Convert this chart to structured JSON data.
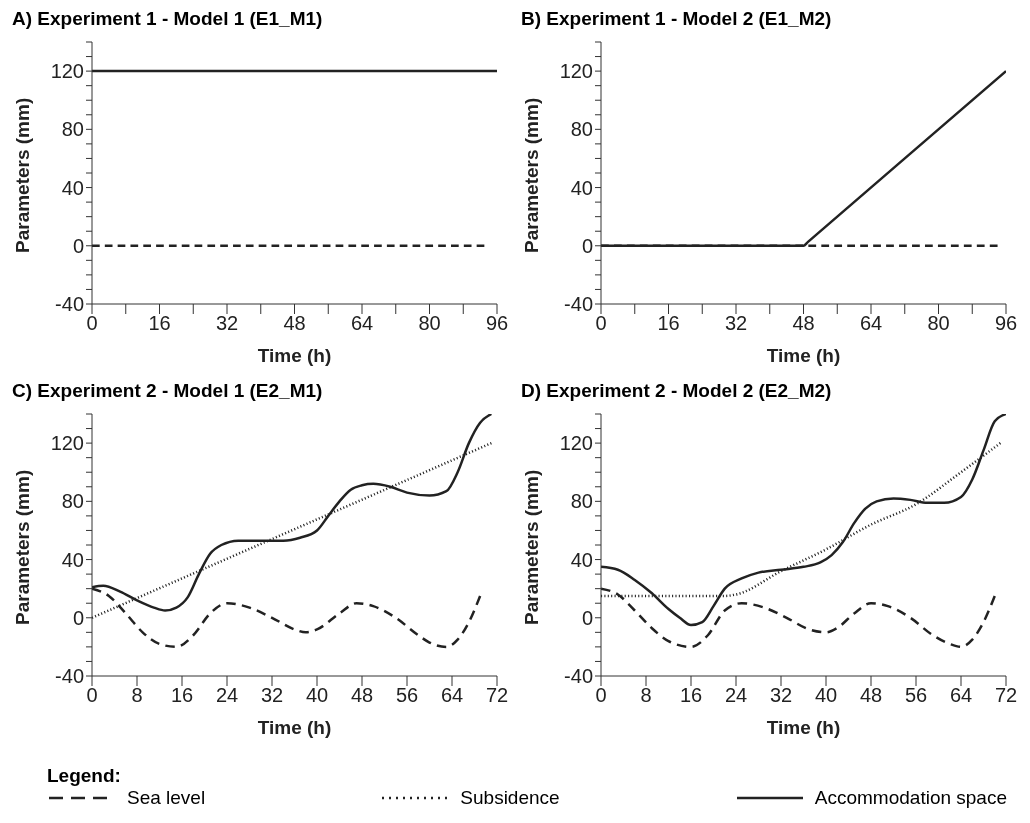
{
  "chart_data": [
    {
      "type": "line",
      "title": "A) Experiment 1 - Model 1 (E1_M1)",
      "xlabel": "Time (h)",
      "ylabel": "Parameters (mm)",
      "xlim": [
        0,
        96
      ],
      "ylim": [
        -40,
        140
      ],
      "xticks": [
        0,
        {
          "value": 8,
          "label": null
        },
        16,
        {
          "value": 24,
          "label": null
        },
        32,
        {
          "value": 40,
          "label": null
        },
        48,
        {
          "value": 56,
          "label": null
        },
        64,
        {
          "value": 72,
          "label": null
        },
        80,
        {
          "value": 88,
          "label": null
        },
        96
      ],
      "yticks": [
        -40,
        {
          "value": -30,
          "label": null
        },
        {
          "value": -20,
          "label": null
        },
        {
          "value": -10,
          "label": null
        },
        0,
        {
          "value": 10,
          "label": null
        },
        {
          "value": 20,
          "label": null
        },
        {
          "value": 30,
          "label": null
        },
        40,
        {
          "value": 50,
          "label": null
        },
        {
          "value": 60,
          "label": null
        },
        {
          "value": 70,
          "label": null
        },
        80,
        {
          "value": 90,
          "label": null
        },
        {
          "value": 100,
          "label": null
        },
        {
          "value": 110,
          "label": null
        },
        120,
        {
          "value": 130,
          "label": null
        },
        {
          "value": 140,
          "label": null
        }
      ],
      "grid": false,
      "legend": false,
      "marker": "none",
      "series": [
        {
          "color": "#222222",
          "line_style": "dashed",
          "x": [
            0,
            93
          ],
          "values": [
            0,
            0
          ]
        },
        {
          "color": "#222222",
          "line_style": "solid",
          "x": [
            0,
            96
          ],
          "values": [
            120,
            120
          ]
        }
      ]
    },
    {
      "type": "line",
      "title": "B) Experiment 1 - Model 2 (E1_M2)",
      "xlabel": "Time (h)",
      "ylabel": "Parameters (mm)",
      "xlim": [
        0,
        96
      ],
      "ylim": [
        -40,
        140
      ],
      "xticks": [
        0,
        {
          "value": 8,
          "label": null
        },
        16,
        {
          "value": 24,
          "label": null
        },
        32,
        {
          "value": 40,
          "label": null
        },
        48,
        {
          "value": 56,
          "label": null
        },
        64,
        {
          "value": 72,
          "label": null
        },
        80,
        {
          "value": 88,
          "label": null
        },
        96
      ],
      "yticks": [
        -40,
        {
          "value": -30,
          "label": null
        },
        {
          "value": -20,
          "label": null
        },
        {
          "value": -10,
          "label": null
        },
        0,
        {
          "value": 10,
          "label": null
        },
        {
          "value": 20,
          "label": null
        },
        {
          "value": 30,
          "label": null
        },
        40,
        {
          "value": 50,
          "label": null
        },
        {
          "value": 60,
          "label": null
        },
        {
          "value": 70,
          "label": null
        },
        80,
        {
          "value": 90,
          "label": null
        },
        {
          "value": 100,
          "label": null
        },
        {
          "value": 110,
          "label": null
        },
        120,
        {
          "value": 130,
          "label": null
        },
        {
          "value": 140,
          "label": null
        }
      ],
      "grid": false,
      "legend": false,
      "marker": "none",
      "series": [
        {
          "color": "#222222",
          "line_style": "dashed",
          "x": [
            0,
            94
          ],
          "values": [
            0,
            0
          ]
        },
        {
          "color": "#222222",
          "line_style": "solid",
          "x": [
            0,
            48,
            49,
            96
          ],
          "values": [
            0,
            0,
            2.5,
            120
          ]
        }
      ]
    },
    {
      "type": "line",
      "title": "C) Experiment 2 - Model 1 (E2_M1)",
      "xlabel": "Time (h)",
      "ylabel": "Parameters (mm)",
      "xlim": [
        0,
        72
      ],
      "ylim": [
        -40,
        140
      ],
      "xticks": [
        0,
        8,
        16,
        24,
        32,
        40,
        48,
        56,
        64,
        72
      ],
      "yticks": [
        -40,
        {
          "value": -30,
          "label": null
        },
        {
          "value": -20,
          "label": null
        },
        {
          "value": -10,
          "label": null
        },
        0,
        {
          "value": 10,
          "label": null
        },
        {
          "value": 20,
          "label": null
        },
        {
          "value": 30,
          "label": null
        },
        40,
        {
          "value": 50,
          "label": null
        },
        {
          "value": 60,
          "label": null
        },
        {
          "value": 70,
          "label": null
        },
        80,
        {
          "value": 90,
          "label": null
        },
        {
          "value": 100,
          "label": null
        },
        {
          "value": 110,
          "label": null
        },
        120,
        {
          "value": 130,
          "label": null
        },
        {
          "value": 140,
          "label": null
        }
      ],
      "grid": false,
      "legend": false,
      "marker": "none",
      "series": [
        {
          "color": "#222222",
          "line_style": "dashed",
          "x": [
            0,
            3,
            6,
            9,
            12,
            15,
            18,
            21,
            24,
            28,
            32,
            36,
            38,
            40,
            44,
            47,
            50,
            54,
            58,
            60,
            63,
            65,
            67,
            69
          ],
          "values": [
            20,
            15,
            3,
            -10,
            -18,
            -20,
            -12,
            3,
            10,
            7,
            0,
            -8,
            -10,
            -8,
            3,
            10,
            8,
            0,
            -12,
            -17,
            -20,
            -15,
            -3,
            15
          ]
        },
        {
          "color": "#222222",
          "line_style": "dotted",
          "x": [
            0,
            71
          ],
          "values": [
            0,
            120
          ]
        },
        {
          "color": "#222222",
          "line_style": "solid",
          "x": [
            0,
            2,
            5,
            8,
            11,
            13,
            15,
            17,
            19,
            21,
            23,
            26,
            30,
            34,
            37,
            40,
            42,
            44,
            46,
            48,
            50,
            53,
            56,
            60,
            63,
            65,
            67,
            69,
            71
          ],
          "values": [
            21,
            22,
            18,
            12,
            7,
            5,
            7,
            14,
            30,
            44,
            50,
            53,
            53,
            53,
            55,
            60,
            70,
            80,
            88,
            91,
            92,
            90,
            86,
            84,
            87,
            100,
            120,
            134,
            140
          ]
        }
      ]
    },
    {
      "type": "line",
      "title": "D) Experiment 2 - Model 2 (E2_M2)",
      "xlabel": "Time (h)",
      "ylabel": "Parameters (mm)",
      "legend_title": "Legend:",
      "xlim": [
        0,
        72
      ],
      "ylim": [
        -40,
        140
      ],
      "xticks": [
        0,
        8,
        16,
        24,
        32,
        40,
        48,
        56,
        64,
        72
      ],
      "yticks": [
        -40,
        {
          "value": -30,
          "label": null
        },
        {
          "value": -20,
          "label": null
        },
        {
          "value": -10,
          "label": null
        },
        0,
        {
          "value": 10,
          "label": null
        },
        {
          "value": 20,
          "label": null
        },
        {
          "value": 30,
          "label": null
        },
        40,
        {
          "value": 50,
          "label": null
        },
        {
          "value": 60,
          "label": null
        },
        {
          "value": 70,
          "label": null
        },
        80,
        {
          "value": 90,
          "label": null
        },
        {
          "value": 100,
          "label": null
        },
        {
          "value": 110,
          "label": null
        },
        120,
        {
          "value": 130,
          "label": null
        },
        {
          "value": 140,
          "label": null
        }
      ],
      "grid": false,
      "legend": "bottom",
      "marker": "none",
      "series": [
        {
          "name": "Sea level",
          "color": "#222222",
          "line_style": "dashed",
          "x": [
            0,
            3,
            6,
            9,
            12,
            16,
            19,
            22,
            25,
            29,
            33,
            37,
            40,
            42,
            45,
            48,
            51,
            55,
            59,
            62,
            64,
            66,
            68,
            70
          ],
          "values": [
            20,
            16,
            5,
            -7,
            -16,
            -20,
            -12,
            5,
            10,
            7,
            0,
            -8,
            -10,
            -7,
            3,
            10,
            8,
            0,
            -12,
            -18,
            -20,
            -15,
            -3,
            15
          ]
        },
        {
          "name": "Subsidence",
          "color": "#222222",
          "line_style": "dotted",
          "x": [
            0,
            22,
            24,
            32,
            40,
            48,
            56,
            64,
            71
          ],
          "values": [
            15,
            15,
            16,
            32,
            47,
            64,
            78,
            100,
            120
          ]
        },
        {
          "name": "Accommodation space",
          "color": "#222222",
          "line_style": "solid",
          "x": [
            0,
            3,
            6,
            9,
            12,
            14,
            16,
            18,
            20,
            22,
            25,
            28,
            32,
            36,
            39,
            41,
            43,
            45,
            47,
            49,
            52,
            55,
            58,
            61,
            64,
            66,
            68,
            70,
            72
          ],
          "values": [
            35,
            33,
            26,
            17,
            6,
            0,
            -5,
            -3,
            8,
            20,
            27,
            31,
            33,
            35,
            38,
            43,
            52,
            65,
            75,
            80,
            82,
            81,
            79,
            79,
            83,
            95,
            115,
            135,
            140
          ]
        }
      ]
    }
  ]
}
